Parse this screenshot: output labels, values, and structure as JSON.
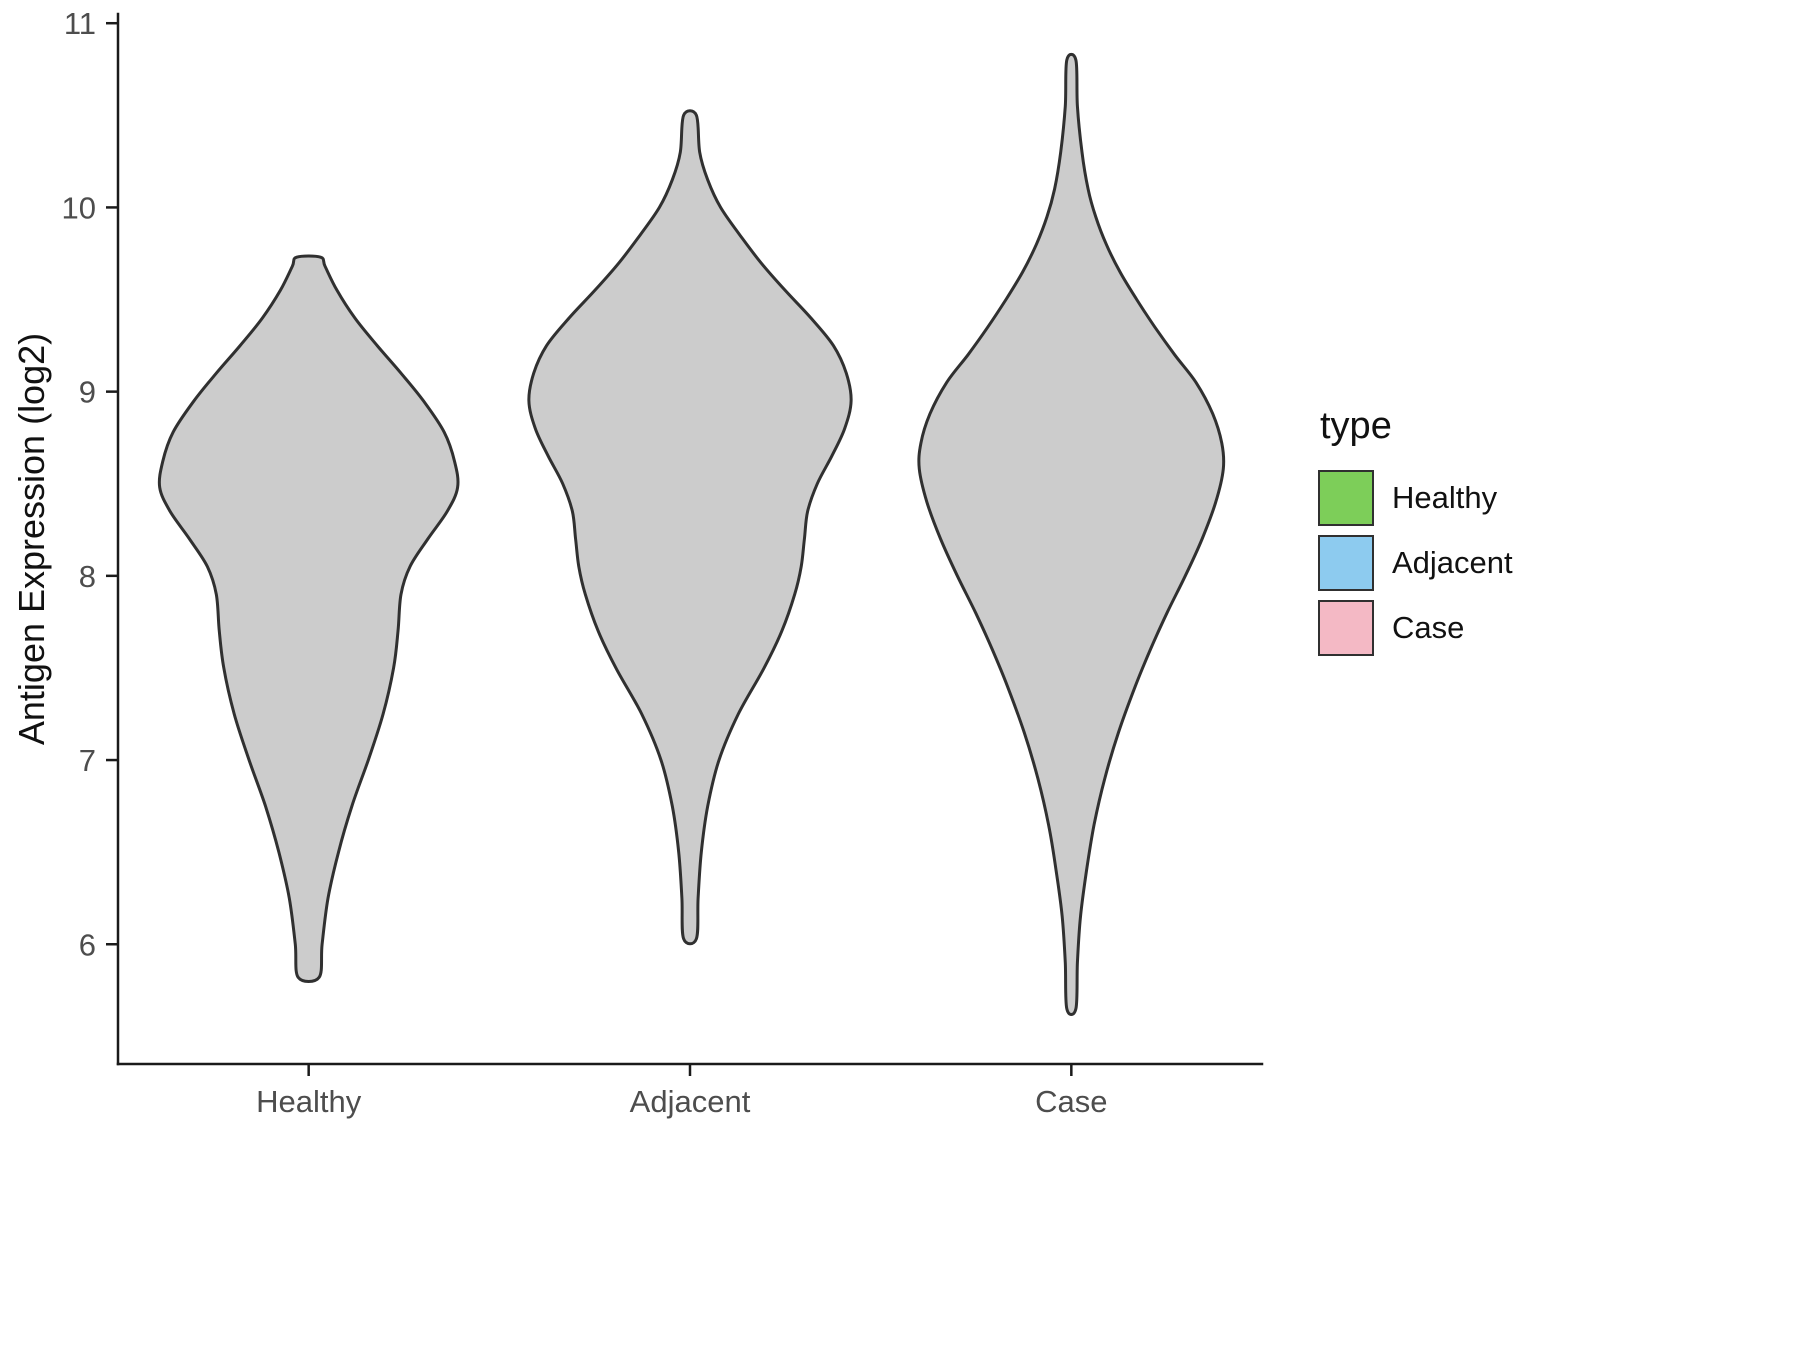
{
  "chart_data": {
    "type": "violin",
    "title": "",
    "xlabel": "",
    "ylabel": "Antigen Expression (log2)",
    "ylim": [
      5.35,
      11.05
    ],
    "yticks": [
      6,
      7,
      8,
      9,
      10,
      11
    ],
    "categories": [
      "Healthy",
      "Adjacent",
      "Case"
    ],
    "grid": false,
    "background": "#FFFFFF",
    "outline_color": "#303030",
    "legend": {
      "title": "type",
      "position": "right",
      "entries": [
        {
          "label": "Healthy",
          "color": "#7DCE59"
        },
        {
          "label": "Adjacent",
          "color": "#8DCBEF"
        },
        {
          "label": "Case",
          "color": "#F4B9C5"
        }
      ]
    },
    "groups": [
      {
        "name": "Healthy",
        "color": "#7DCE59",
        "width": 0.98,
        "summary": {
          "min": 5.82,
          "max": 9.73,
          "peak": 8.48
        },
        "profile": [
          [
            5.82,
            0.07
          ],
          [
            6.0,
            0.09
          ],
          [
            6.25,
            0.13
          ],
          [
            6.5,
            0.2
          ],
          [
            6.75,
            0.29
          ],
          [
            7.0,
            0.4
          ],
          [
            7.25,
            0.5
          ],
          [
            7.5,
            0.57
          ],
          [
            7.7,
            0.6
          ],
          [
            7.9,
            0.62
          ],
          [
            8.05,
            0.68
          ],
          [
            8.2,
            0.8
          ],
          [
            8.35,
            0.93
          ],
          [
            8.48,
            1.0
          ],
          [
            8.62,
            0.98
          ],
          [
            8.78,
            0.91
          ],
          [
            8.95,
            0.77
          ],
          [
            9.1,
            0.62
          ],
          [
            9.25,
            0.46
          ],
          [
            9.4,
            0.31
          ],
          [
            9.55,
            0.19
          ],
          [
            9.68,
            0.11
          ],
          [
            9.73,
            0.08
          ]
        ]
      },
      {
        "name": "Adjacent",
        "color": "#8DCBEF",
        "width": 1.06,
        "summary": {
          "min": 6.03,
          "max": 10.5,
          "peak": 8.95
        },
        "profile": [
          [
            6.03,
            0.04
          ],
          [
            6.25,
            0.05
          ],
          [
            6.5,
            0.07
          ],
          [
            6.75,
            0.11
          ],
          [
            7.0,
            0.18
          ],
          [
            7.25,
            0.3
          ],
          [
            7.5,
            0.46
          ],
          [
            7.7,
            0.57
          ],
          [
            7.9,
            0.65
          ],
          [
            8.05,
            0.69
          ],
          [
            8.2,
            0.71
          ],
          [
            8.35,
            0.73
          ],
          [
            8.5,
            0.79
          ],
          [
            8.65,
            0.88
          ],
          [
            8.8,
            0.96
          ],
          [
            8.95,
            1.0
          ],
          [
            9.1,
            0.97
          ],
          [
            9.25,
            0.89
          ],
          [
            9.4,
            0.75
          ],
          [
            9.55,
            0.59
          ],
          [
            9.7,
            0.44
          ],
          [
            9.85,
            0.31
          ],
          [
            10.0,
            0.19
          ],
          [
            10.15,
            0.11
          ],
          [
            10.3,
            0.06
          ],
          [
            10.5,
            0.04
          ]
        ]
      },
      {
        "name": "Case",
        "color": "#F4B9C5",
        "width": 1.0,
        "summary": {
          "min": 5.65,
          "max": 10.8,
          "peak": 8.58
        },
        "profile": [
          [
            5.65,
            0.03
          ],
          [
            5.9,
            0.04
          ],
          [
            6.15,
            0.06
          ],
          [
            6.4,
            0.1
          ],
          [
            6.65,
            0.15
          ],
          [
            6.9,
            0.22
          ],
          [
            7.15,
            0.31
          ],
          [
            7.4,
            0.42
          ],
          [
            7.6,
            0.52
          ],
          [
            7.8,
            0.63
          ],
          [
            8.0,
            0.75
          ],
          [
            8.2,
            0.86
          ],
          [
            8.4,
            0.95
          ],
          [
            8.58,
            1.0
          ],
          [
            8.72,
            0.99
          ],
          [
            8.88,
            0.93
          ],
          [
            9.05,
            0.82
          ],
          [
            9.2,
            0.68
          ],
          [
            9.35,
            0.55
          ],
          [
            9.5,
            0.43
          ],
          [
            9.65,
            0.32
          ],
          [
            9.8,
            0.23
          ],
          [
            9.95,
            0.16
          ],
          [
            10.1,
            0.11
          ],
          [
            10.3,
            0.07
          ],
          [
            10.55,
            0.04
          ],
          [
            10.8,
            0.03
          ]
        ]
      }
    ]
  }
}
